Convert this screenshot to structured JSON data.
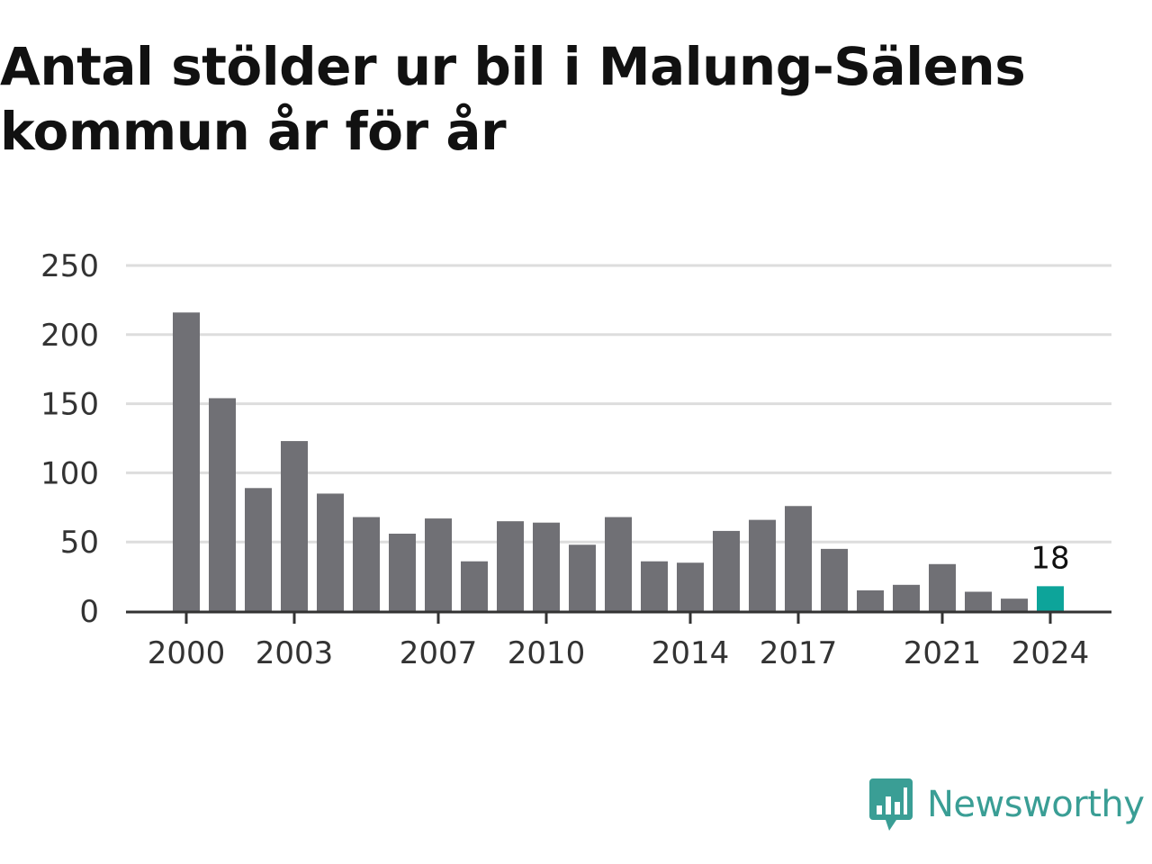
{
  "chart_data": {
    "type": "bar",
    "title": "Antal stölder ur bil i Malung-Sälens kommun år för år",
    "xlabel": "",
    "ylabel": "",
    "ylim": [
      0,
      250
    ],
    "yticks": [
      0,
      50,
      100,
      150,
      200,
      250
    ],
    "xticks": [
      2000,
      2003,
      2007,
      2010,
      2014,
      2017,
      2021,
      2024
    ],
    "grid": true,
    "categories": [
      2000,
      2001,
      2002,
      2003,
      2004,
      2005,
      2006,
      2007,
      2008,
      2009,
      2010,
      2011,
      2012,
      2013,
      2014,
      2015,
      2016,
      2017,
      2018,
      2019,
      2020,
      2021,
      2022,
      2023,
      2024
    ],
    "values": [
      216,
      154,
      89,
      123,
      85,
      68,
      56,
      67,
      36,
      65,
      64,
      48,
      68,
      36,
      35,
      58,
      66,
      76,
      45,
      15,
      19,
      34,
      14,
      9,
      18
    ],
    "highlight": {
      "category": 2024,
      "label": "18"
    },
    "colors": {
      "bar": "#707075",
      "highlight": "#0da49a",
      "grid": "#dddddd",
      "axis": "#333333"
    }
  },
  "logo": {
    "text": "Newsworthy",
    "icon": "newsworthy-logo-icon",
    "color": "#3a9e95"
  }
}
